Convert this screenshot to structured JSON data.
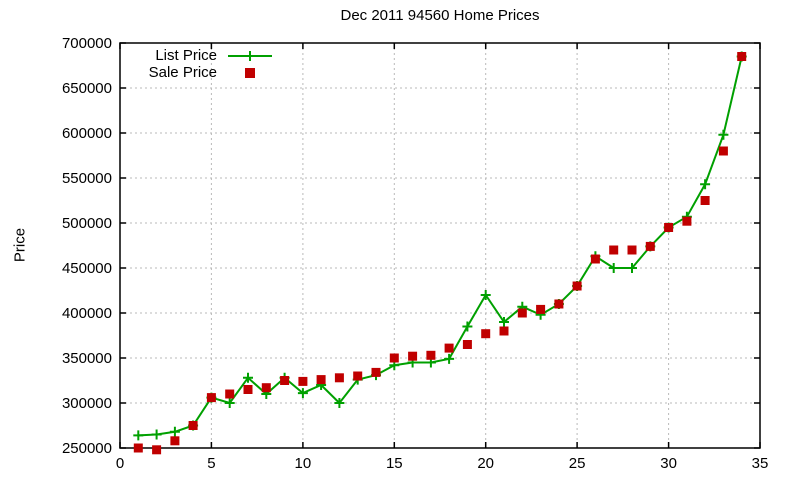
{
  "title": "Dec 2011 94560 Home Prices",
  "ylabel": "Price",
  "chart_data": {
    "type": "line",
    "x": [
      1,
      2,
      3,
      4,
      5,
      6,
      7,
      8,
      9,
      10,
      11,
      12,
      13,
      14,
      15,
      16,
      17,
      18,
      19,
      20,
      21,
      22,
      23,
      24,
      25,
      26,
      27,
      28,
      29,
      30,
      31,
      32,
      33,
      34
    ],
    "series": [
      {
        "name": "List Price",
        "color": "#00a000",
        "marker": "plus",
        "line": true,
        "values": [
          264000,
          265000,
          268000,
          275000,
          306000,
          300000,
          328000,
          310000,
          328000,
          311000,
          320000,
          300000,
          326000,
          331000,
          342000,
          345000,
          345000,
          349000,
          385000,
          420000,
          390000,
          407000,
          398000,
          410000,
          430000,
          463000,
          450000,
          450000,
          474000,
          495000,
          507000,
          543000,
          598000,
          685000
        ]
      },
      {
        "name": "Sale Price",
        "color": "#c00000",
        "marker": "square",
        "line": false,
        "values": [
          250000,
          248000,
          258000,
          275000,
          306000,
          310000,
          315000,
          317000,
          325000,
          324000,
          326000,
          328000,
          330000,
          334000,
          350000,
          352000,
          353000,
          361000,
          365000,
          377000,
          380000,
          400000,
          404000,
          410000,
          430000,
          460000,
          470000,
          470000,
          474000,
          495000,
          502000,
          525000,
          580000,
          685000
        ]
      }
    ],
    "xlabel": "",
    "xlim": [
      0,
      35
    ],
    "ylim": [
      250000,
      700000
    ],
    "xticks": [
      0,
      5,
      10,
      15,
      20,
      25,
      30,
      35
    ],
    "yticks": [
      250000,
      300000,
      350000,
      400000,
      450000,
      500000,
      550000,
      600000,
      650000,
      700000
    ],
    "grid": true,
    "grid_color": "#b9b9b9",
    "border_color": "#000000",
    "legend_position": "top-left"
  }
}
